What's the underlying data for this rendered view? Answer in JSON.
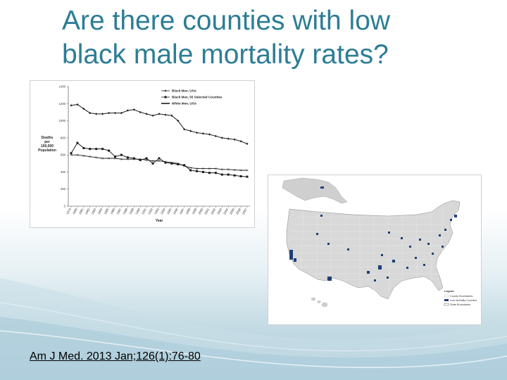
{
  "slide": {
    "title_line1": "Are there counties with low",
    "title_line2": "black male mortality rates?",
    "citation": "Am J Med. 2013 Jan;126(1):76-80"
  },
  "colors": {
    "title": "#2d7d95",
    "series_black_usa": "#1a1a1a",
    "series_selected": "#1a1a1a",
    "series_white_usa": "#1a1a1a",
    "map_highlight": "#1f3f78"
  },
  "chart_data": {
    "type": "line",
    "title": "",
    "xlabel": "Year",
    "ylabel": "Deaths per 100,000 Population",
    "ylim": [
      0,
      1400
    ],
    "yticks": [
      "0",
      "200",
      "400",
      "600",
      "800",
      "1000",
      "1200",
      "1400"
    ],
    "x": [
      "1979",
      "1980",
      "1981",
      "1982",
      "1983",
      "1984",
      "1985",
      "1986",
      "1987",
      "1988",
      "1989",
      "1990",
      "1991",
      "1992",
      "1993",
      "1994",
      "1995",
      "1996",
      "1997",
      "1998",
      "1999",
      "2000",
      "2001",
      "2002",
      "2003",
      "2004",
      "2005",
      "2006",
      "2007"
    ],
    "legend_position": "top-right",
    "grid": false,
    "series": [
      {
        "name": "Black Men, USA",
        "marker": "diamond",
        "values": [
          1180,
          1190,
          1140,
          1090,
          1080,
          1080,
          1090,
          1090,
          1090,
          1120,
          1130,
          1100,
          1080,
          1060,
          1080,
          1070,
          1060,
          1000,
          900,
          880,
          860,
          850,
          840,
          820,
          800,
          790,
          780,
          760,
          730
        ]
      },
      {
        "name": "Black Men, 55 Selected Counties",
        "marker": "square",
        "values": [
          620,
          740,
          680,
          670,
          670,
          670,
          650,
          580,
          600,
          570,
          560,
          540,
          560,
          500,
          560,
          510,
          500,
          490,
          480,
          420,
          410,
          400,
          390,
          390,
          370,
          370,
          360,
          350,
          345
        ]
      },
      {
        "name": "White Men, USA",
        "marker": "cross",
        "values": [
          600,
          600,
          590,
          580,
          570,
          560,
          560,
          560,
          550,
          550,
          550,
          550,
          540,
          530,
          530,
          520,
          510,
          500,
          470,
          450,
          440,
          440,
          440,
          440,
          430,
          430,
          425,
          420,
          420
        ]
      }
    ]
  },
  "map": {
    "legend_title": "Legend",
    "legend_items": [
      "County Boundaries",
      "Low Mortality Counties",
      "State Boundaries"
    ]
  }
}
